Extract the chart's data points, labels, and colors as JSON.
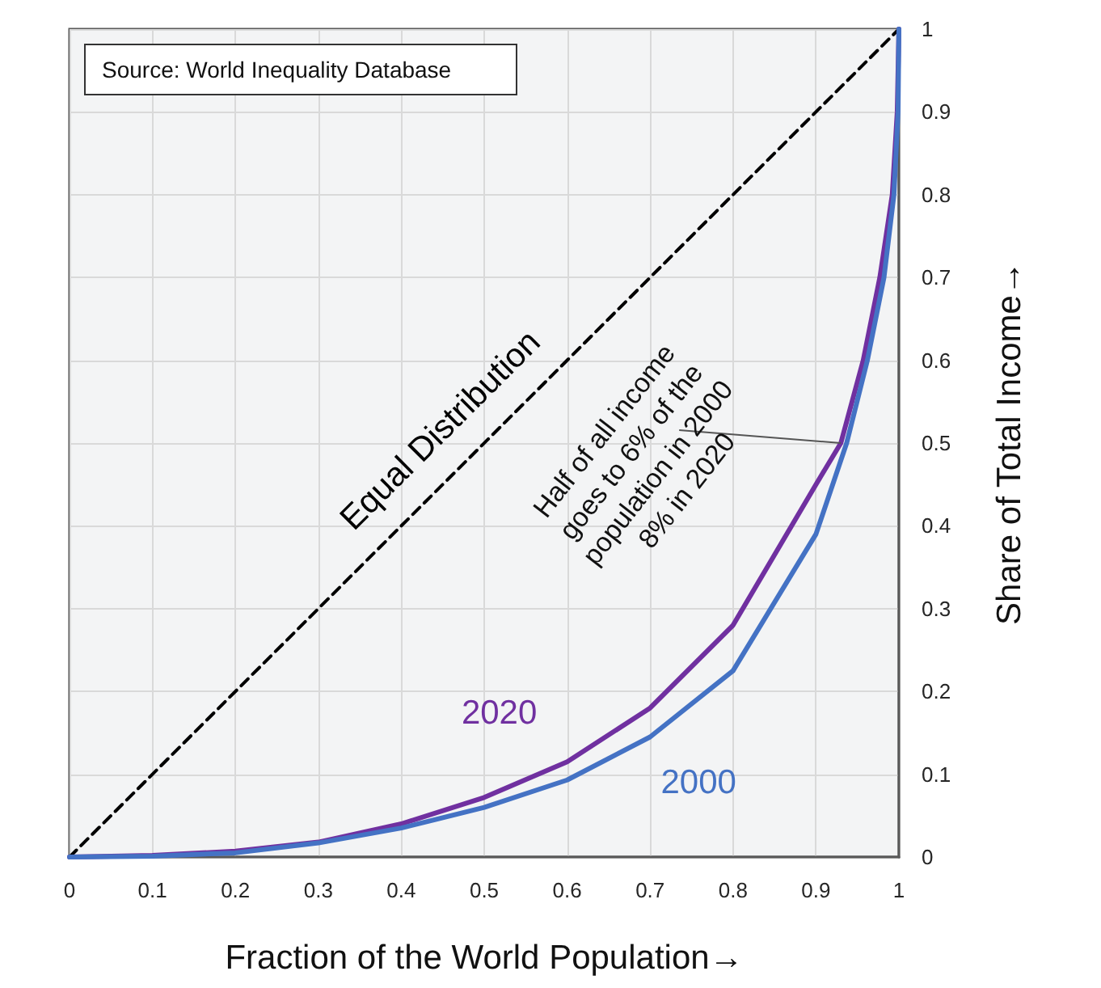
{
  "chart_data": {
    "type": "line",
    "xlabel": "Fraction of the World Population→",
    "ylabel": "Share of Total Income→",
    "xlim": [
      0,
      1
    ],
    "ylim": [
      0,
      1
    ],
    "xticks": [
      0,
      0.1,
      0.2,
      0.3,
      0.4,
      0.5,
      0.6,
      0.7,
      0.8,
      0.9,
      1
    ],
    "yticks": [
      0,
      0.1,
      0.2,
      0.3,
      0.4,
      0.5,
      0.6,
      0.7,
      0.8,
      0.9,
      1
    ],
    "grid": true,
    "marker": "none",
    "series": [
      {
        "name": "Equal Distribution",
        "color": "#000000",
        "line_style": "dashed",
        "x": [
          0,
          1
        ],
        "values": [
          0,
          1
        ]
      },
      {
        "name": "2020",
        "color": "#7030a0",
        "line_style": "solid",
        "x": [
          0,
          0.1,
          0.2,
          0.3,
          0.4,
          0.5,
          0.6,
          0.7,
          0.8,
          0.9,
          0.93,
          0.957,
          0.977,
          0.992,
          0.998,
          1
        ],
        "values": [
          0,
          0.002,
          0.007,
          0.018,
          0.04,
          0.072,
          0.115,
          0.18,
          0.28,
          0.45,
          0.5,
          0.6,
          0.7,
          0.8,
          0.9,
          1
        ]
      },
      {
        "name": "2000",
        "color": "#4472c4",
        "line_style": "solid",
        "x": [
          0,
          0.1,
          0.2,
          0.3,
          0.4,
          0.5,
          0.6,
          0.7,
          0.8,
          0.9,
          0.937,
          0.962,
          0.982,
          0.994,
          0.999,
          1
        ],
        "values": [
          0,
          0.001,
          0.005,
          0.017,
          0.035,
          0.06,
          0.093,
          0.145,
          0.225,
          0.39,
          0.5,
          0.6,
          0.7,
          0.8,
          0.9,
          1
        ]
      }
    ],
    "annotations": [
      "Source: World Inequality Database",
      {
        "text": "Half of all income goes to 6% of the population in 2000 8% in 2020",
        "x": 0.93,
        "y": 0.5
      }
    ]
  }
}
